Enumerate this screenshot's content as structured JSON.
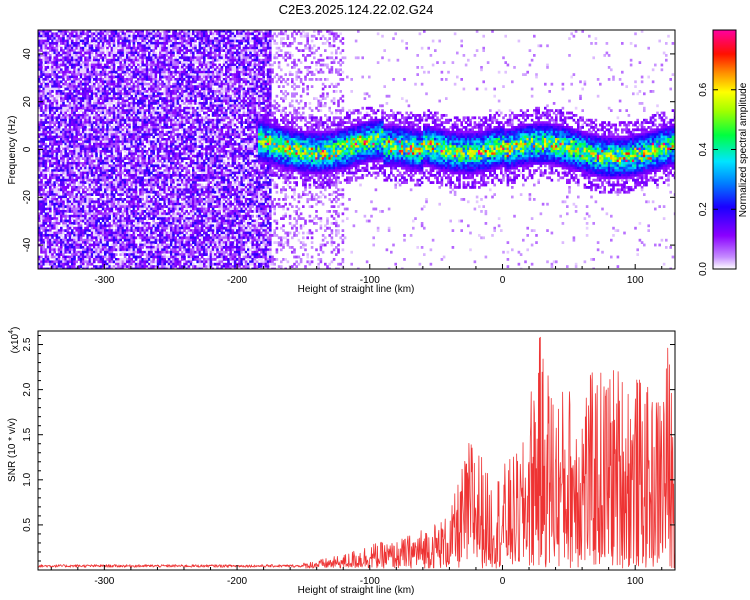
{
  "chart_data": [
    {
      "type": "heatmap",
      "title": "C2E3.2025.124.22.02.G24",
      "xlabel": "Height of straight line (km)",
      "ylabel": "Frequency (Hz)",
      "xlim": [
        -350,
        130
      ],
      "ylim": [
        -50,
        50
      ],
      "xticks": [
        -300,
        -200,
        -100,
        0,
        100
      ],
      "yticks": [
        -40,
        -20,
        0,
        20,
        40
      ],
      "colorbar": {
        "label": "Normalized spectral amplitude",
        "range": [
          0.0,
          0.8
        ],
        "ticks": [
          0.0,
          0.2,
          0.4,
          0.6
        ],
        "colormap": [
          "#ffffff",
          "#8800ff",
          "#0000ff",
          "#00ffff",
          "#00ff00",
          "#ffff00",
          "#ff8800",
          "#ff0000",
          "#ff00ff"
        ]
      },
      "description_regions": [
        {
          "x_range": [
            -350,
            -175
          ],
          "freq_range": [
            -50,
            50
          ],
          "level": 0.08
        },
        {
          "x_range": [
            -175,
            -120
          ],
          "freq_range": [
            -50,
            50
          ],
          "level": 0.03
        },
        {
          "x_range": [
            -175,
            130
          ],
          "center_freq": 2,
          "bandwidth": 18,
          "peak_level": 0.7
        }
      ],
      "grid": false
    },
    {
      "type": "line",
      "xlabel": "Height of straight line (km)",
      "ylabel": "SNR (10 * v/v)",
      "y_multiplier_label": "(x10",
      "y_multiplier_exp": "4",
      "xlim": [
        -350,
        130
      ],
      "ylim": [
        0,
        2.65
      ],
      "xticks": [
        -300,
        -200,
        -100,
        0,
        100
      ],
      "yticks": [
        0.5,
        1.0,
        1.5,
        2.0,
        2.5
      ],
      "ytick_labels": [
        "0.5",
        "1.0",
        "1.5",
        "2.0",
        "2.5"
      ],
      "series": [
        {
          "color": "#ee3333",
          "envelope": [
            {
              "x": -350,
              "y": 0.05
            },
            {
              "x": -200,
              "y": 0.05
            },
            {
              "x": -150,
              "y": 0.06
            },
            {
              "x": -120,
              "y": 0.15
            },
            {
              "x": -100,
              "y": 0.28
            },
            {
              "x": -80,
              "y": 0.3
            },
            {
              "x": -60,
              "y": 0.45
            },
            {
              "x": -40,
              "y": 0.6
            },
            {
              "x": -22,
              "y": 1.6
            },
            {
              "x": -10,
              "y": 1.0
            },
            {
              "x": 0,
              "y": 1.15
            },
            {
              "x": 15,
              "y": 1.35
            },
            {
              "x": 27,
              "y": 2.65
            },
            {
              "x": 40,
              "y": 2.0
            },
            {
              "x": 55,
              "y": 2.1
            },
            {
              "x": 70,
              "y": 2.2
            },
            {
              "x": 85,
              "y": 2.3
            },
            {
              "x": 100,
              "y": 2.2
            },
            {
              "x": 115,
              "y": 1.9
            },
            {
              "x": 125,
              "y": 2.55
            },
            {
              "x": 130,
              "y": 1.7
            }
          ]
        }
      ],
      "grid": false
    }
  ]
}
